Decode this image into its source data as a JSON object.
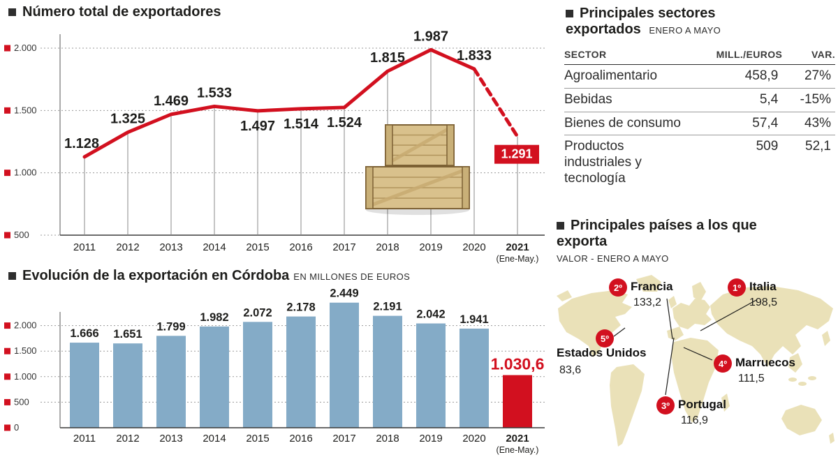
{
  "colors": {
    "accent_red": "#d2101f",
    "bar_blue": "#84abc7",
    "map_fill": "#eae1b8",
    "text_dark": "#1d1d1b"
  },
  "chart_data": [
    {
      "type": "line",
      "title": "Número total de exportadores",
      "categories": [
        "2011",
        "2012",
        "2013",
        "2014",
        "2015",
        "2016",
        "2017",
        "2018",
        "2019",
        "2020",
        "2021"
      ],
      "last_category_note": "(Ene-May.)",
      "values": [
        1128,
        1325,
        1469,
        1533,
        1497,
        1514,
        1524,
        1815,
        1987,
        1833,
        1291
      ],
      "value_labels": [
        "1.128",
        "1.325",
        "1.469",
        "1.533",
        "1.497",
        "1.514",
        "1.524",
        "1.815",
        "1.987",
        "1.833",
        "1.291"
      ],
      "highlight_last_index": 10,
      "ylim": [
        500,
        2000
      ],
      "yticks": [
        500,
        1000,
        1500,
        2000
      ],
      "ytick_labels": [
        "500",
        "1.000",
        "1.500",
        "2.000"
      ],
      "grid": true,
      "line_color": "#d2101f"
    },
    {
      "type": "bar",
      "title": "Evolución de la exportación en Córdoba",
      "subtitle": "EN MILLONES DE EUROS",
      "categories": [
        "2011",
        "2012",
        "2013",
        "2014",
        "2015",
        "2016",
        "2017",
        "2018",
        "2019",
        "2020",
        "2021"
      ],
      "last_category_note": "(Ene-May.)",
      "values": [
        1666,
        1651,
        1799,
        1982,
        2072,
        2178,
        2449,
        2191,
        2042,
        1941,
        1030.6
      ],
      "value_labels": [
        "1.666",
        "1.651",
        "1.799",
        "1.982",
        "2.072",
        "2.178",
        "2.449",
        "2.191",
        "2.042",
        "1.941",
        "1.030,6"
      ],
      "highlight_last_index": 10,
      "ylim": [
        0,
        2500
      ],
      "yticks": [
        0,
        500,
        1000,
        1500,
        2000
      ],
      "ytick_labels": [
        "0",
        "500",
        "1.000",
        "1.500",
        "2.000"
      ],
      "grid": true,
      "bar_color": "#84abc7",
      "highlight_color": "#d2101f"
    },
    {
      "type": "table",
      "title": "Principales sectores exportados",
      "subtitle": "ENERO A MAYO",
      "columns": [
        "SECTOR",
        "MILL./EUROS",
        "VAR."
      ],
      "rows": [
        [
          "Agroalimentario",
          "458,9",
          "27%"
        ],
        [
          "Bebidas",
          "5,4",
          "-15%"
        ],
        [
          "Bienes de consumo",
          "57,4",
          "43%"
        ],
        [
          "Productos industriales y tecnología",
          "509",
          "52,1"
        ]
      ]
    },
    {
      "type": "map",
      "title": "Principales países a los que exporta",
      "subtitle": "VALOR - ENERO A MAYO",
      "countries": [
        {
          "rank": "1º",
          "name": "Italia",
          "value": "198,5"
        },
        {
          "rank": "2º",
          "name": "Francia",
          "value": "133,2"
        },
        {
          "rank": "3º",
          "name": "Portugal",
          "value": "116,9"
        },
        {
          "rank": "4º",
          "name": "Marruecos",
          "value": "111,5"
        },
        {
          "rank": "5º",
          "name": "Estados Unidos",
          "value": "83,6"
        }
      ]
    }
  ]
}
